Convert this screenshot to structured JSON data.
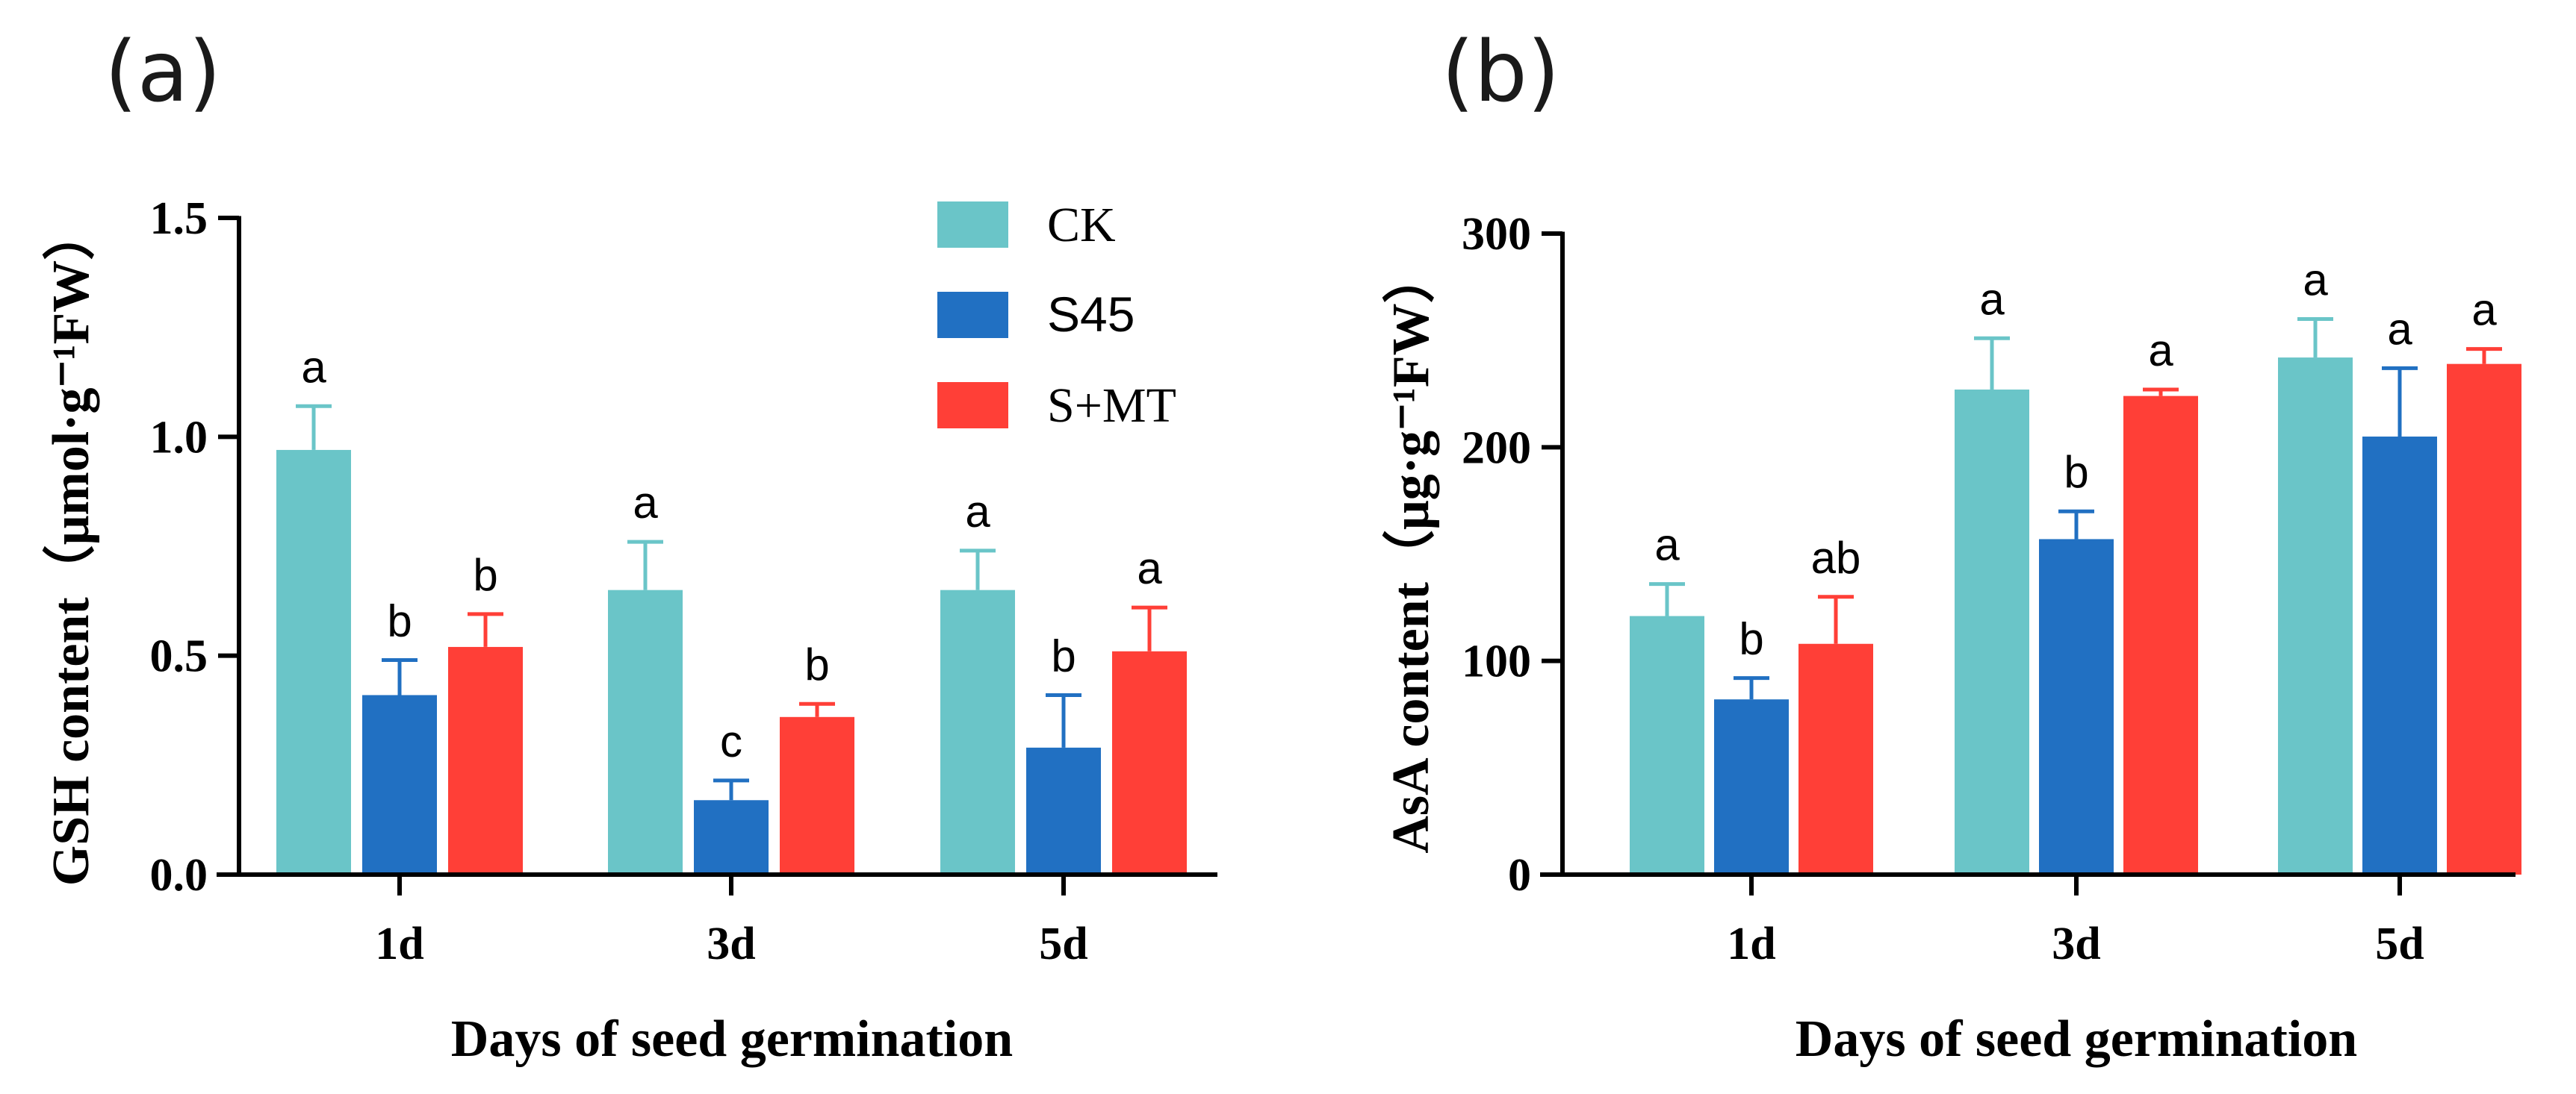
{
  "colors": {
    "CK": "#6AC5C8",
    "S45": "#2170C2",
    "S+MT": "#FF3F37",
    "axis": "#000000"
  },
  "legend": {
    "items": [
      "CK",
      "S45",
      "S+MT"
    ]
  },
  "chart_data": [
    {
      "type": "bar",
      "panel_label": "(a)",
      "categories": [
        "1d",
        "3d",
        "5d"
      ],
      "xlabel": "Days of seed germination",
      "ylabel": "GSH content（μmol·g⁻¹FW）",
      "ylim": [
        0,
        1.5
      ],
      "yticks": [
        0.0,
        0.5,
        1.0,
        1.5
      ],
      "ytick_labels": [
        "0.0",
        "0.5",
        "1.0",
        "1.5"
      ],
      "series": [
        {
          "name": "CK",
          "values": [
            0.97,
            0.65,
            0.65
          ],
          "errors": [
            0.1,
            0.11,
            0.09
          ],
          "letters": [
            "a",
            "a",
            "a"
          ]
        },
        {
          "name": "S45",
          "values": [
            0.41,
            0.17,
            0.29
          ],
          "errors": [
            0.08,
            0.045,
            0.12
          ],
          "letters": [
            "b",
            "c",
            "b"
          ]
        },
        {
          "name": "S+MT",
          "values": [
            0.52,
            0.36,
            0.51
          ],
          "errors": [
            0.075,
            0.03,
            0.1
          ],
          "letters": [
            "b",
            "b",
            "a"
          ]
        }
      ]
    },
    {
      "type": "bar",
      "panel_label": "(b)",
      "categories": [
        "1d",
        "3d",
        "5d"
      ],
      "xlabel": "Days of seed germination",
      "ylabel": "AsA content（μg·g⁻¹FW）",
      "ylim": [
        0,
        300
      ],
      "yticks": [
        0,
        100,
        200,
        300
      ],
      "ytick_labels": [
        "0",
        "100",
        "200",
        "300"
      ],
      "series": [
        {
          "name": "CK",
          "values": [
            121,
            227,
            242
          ],
          "errors": [
            15,
            24,
            18
          ],
          "letters": [
            "a",
            "a",
            "a"
          ]
        },
        {
          "name": "S45",
          "values": [
            82,
            157,
            205
          ],
          "errors": [
            10,
            13,
            32
          ],
          "letters": [
            "b",
            "b",
            "a"
          ]
        },
        {
          "name": "S+MT",
          "values": [
            108,
            224,
            239
          ],
          "errors": [
            22,
            3,
            7
          ],
          "letters": [
            "ab",
            "a",
            "a"
          ]
        }
      ]
    }
  ]
}
